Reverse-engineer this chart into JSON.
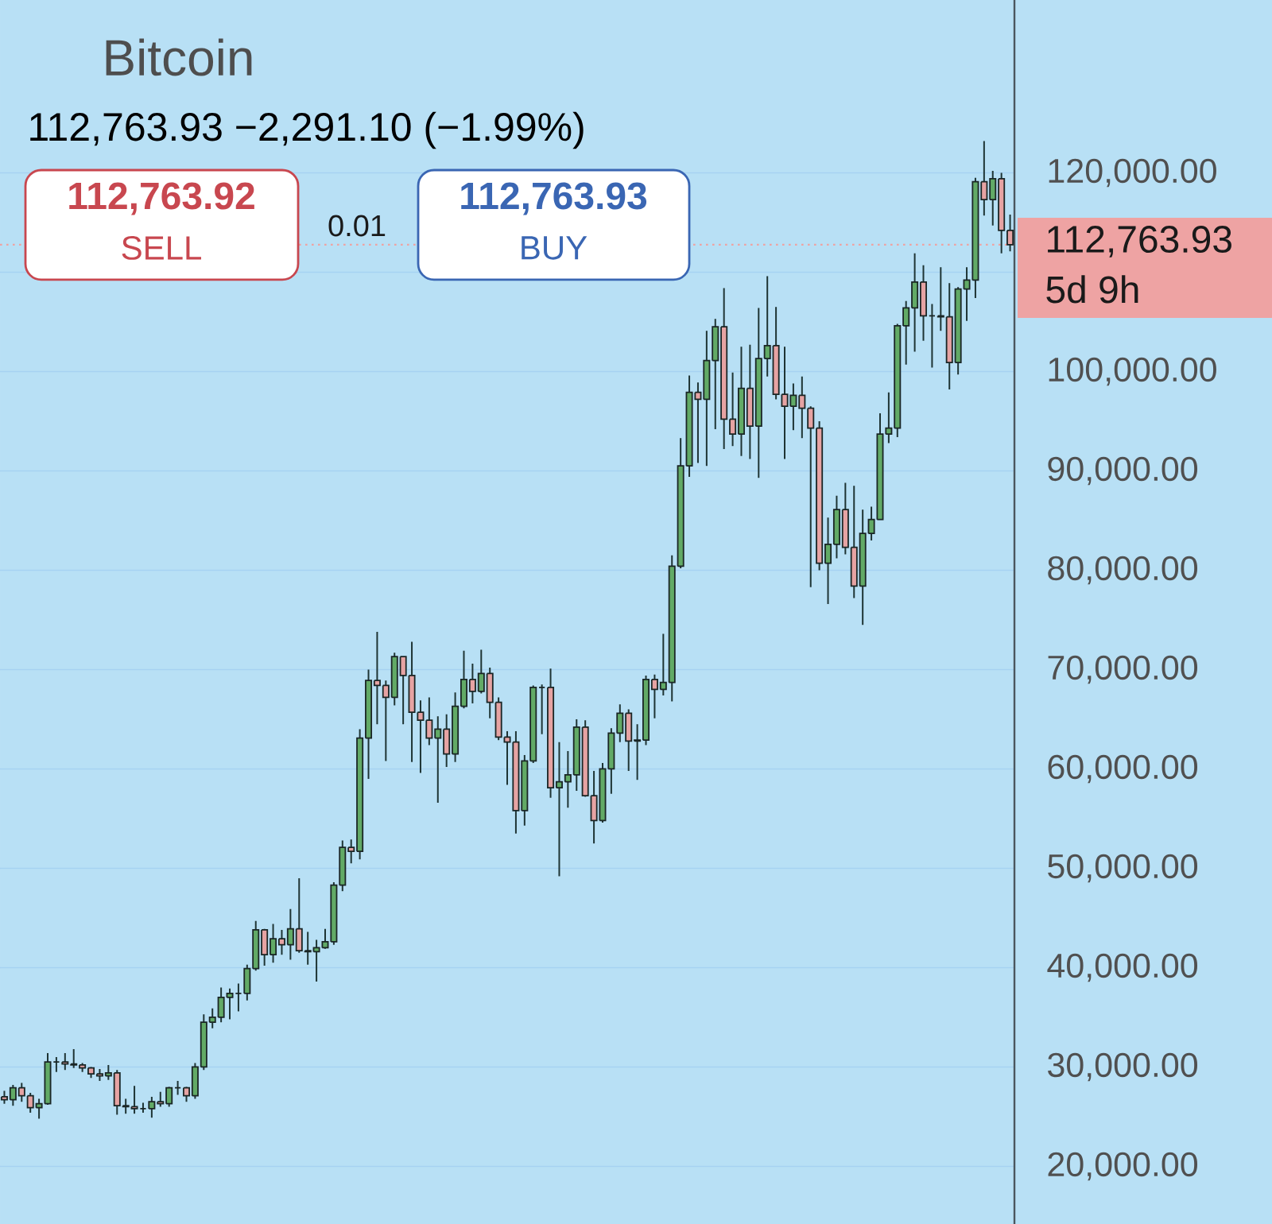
{
  "chart_data": {
    "type": "candlestick",
    "title": "Bitcoin",
    "subtitle": "112,763.93  −2,291.10 (−1.99%)",
    "annotations": [
      "112,763.92",
      "SELL",
      "0.01",
      "112,763.93",
      "BUY",
      "5d 9h"
    ],
    "categories": [
      null,
      null,
      null,
      null,
      null,
      null,
      null,
      null,
      null,
      null,
      null,
      null,
      null,
      null,
      null,
      null,
      null,
      null,
      null,
      null,
      null,
      null,
      null,
      null,
      null,
      null,
      null,
      null,
      null,
      null,
      null,
      null,
      null,
      null,
      null,
      null,
      null,
      null,
      null,
      null,
      null,
      null,
      null,
      null,
      null,
      null,
      null,
      null,
      null,
      null,
      null,
      null,
      null,
      null,
      null,
      null,
      null,
      null,
      null,
      null,
      null,
      null,
      null,
      null,
      null,
      null,
      null,
      null,
      null,
      null,
      null,
      null,
      null,
      null,
      null,
      null,
      null,
      null,
      null,
      null,
      null,
      null,
      null,
      null,
      null,
      null,
      null,
      null,
      null,
      null,
      null,
      null,
      null,
      null,
      null,
      null,
      null,
      null,
      null,
      null,
      null,
      null,
      null,
      null,
      null,
      null,
      null,
      null,
      null,
      null,
      null,
      null,
      null,
      null,
      null,
      null,
      null
    ],
    "ohlc": [
      [
        27000,
        27600,
        26300,
        26700
      ],
      [
        26700,
        28200,
        26100,
        27900
      ],
      [
        27900,
        28400,
        26500,
        27100
      ],
      [
        27100,
        27400,
        25400,
        25900
      ],
      [
        25900,
        26800,
        24800,
        26300
      ],
      [
        26300,
        31400,
        26200,
        30500
      ],
      [
        30500,
        31000,
        29500,
        30500
      ],
      [
        30500,
        31400,
        29700,
        30300
      ],
      [
        30300,
        31800,
        29900,
        30200
      ],
      [
        30200,
        30400,
        29500,
        29900
      ],
      [
        29900,
        30000,
        28900,
        29300
      ],
      [
        29300,
        29800,
        28600,
        29100
      ],
      [
        29100,
        30200,
        28700,
        29400
      ],
      [
        29400,
        29700,
        25200,
        26100
      ],
      [
        26100,
        26800,
        25300,
        26000
      ],
      [
        26000,
        28100,
        25300,
        25800
      ],
      [
        25800,
        26400,
        25400,
        25800
      ],
      [
        25800,
        27000,
        24900,
        26500
      ],
      [
        26500,
        27500,
        26000,
        26300
      ],
      [
        26300,
        28000,
        26000,
        27900
      ],
      [
        27900,
        28600,
        27200,
        27900
      ],
      [
        27900,
        28000,
        26500,
        27100
      ],
      [
        27100,
        30400,
        26800,
        30000
      ],
      [
        30000,
        35300,
        29700,
        34500
      ],
      [
        34500,
        35900,
        33900,
        35000
      ],
      [
        35000,
        38000,
        34500,
        37000
      ],
      [
        37000,
        37900,
        34800,
        37400
      ],
      [
        37400,
        38400,
        35600,
        37400
      ],
      [
        37400,
        40300,
        36700,
        39900
      ],
      [
        39900,
        44700,
        39700,
        43800
      ],
      [
        43800,
        43900,
        40200,
        41300
      ],
      [
        41300,
        44400,
        40500,
        42900
      ],
      [
        42900,
        43800,
        41300,
        42300
      ],
      [
        42300,
        45900,
        40800,
        43900
      ],
      [
        43900,
        49000,
        41500,
        41700
      ],
      [
        41700,
        43600,
        40300,
        41600
      ],
      [
        41600,
        42800,
        38600,
        42000
      ],
      [
        42000,
        43900,
        41900,
        42600
      ],
      [
        42600,
        48600,
        42300,
        48300
      ],
      [
        48300,
        52800,
        47700,
        52100
      ],
      [
        52100,
        52900,
        50500,
        51700
      ],
      [
        51700,
        64000,
        50900,
        63100
      ],
      [
        63100,
        70000,
        59000,
        68900
      ],
      [
        68900,
        73800,
        64500,
        68400
      ],
      [
        68400,
        68900,
        60800,
        67200
      ],
      [
        67200,
        71700,
        66400,
        71300
      ],
      [
        71300,
        71300,
        64500,
        69400
      ],
      [
        69400,
        72800,
        60700,
        65700
      ],
      [
        65700,
        66900,
        59600,
        64900
      ],
      [
        64900,
        67200,
        62400,
        63100
      ],
      [
        63100,
        65300,
        56600,
        64000
      ],
      [
        64000,
        65500,
        60200,
        61500
      ],
      [
        61500,
        67700,
        60700,
        66300
      ],
      [
        66300,
        71900,
        66100,
        69000
      ],
      [
        69000,
        70600,
        66600,
        67800
      ],
      [
        67800,
        72000,
        67600,
        69600
      ],
      [
        69600,
        70200,
        65100,
        66700
      ],
      [
        66700,
        67200,
        62900,
        63200
      ],
      [
        63200,
        63800,
        58400,
        62700
      ],
      [
        62700,
        63800,
        53500,
        55800
      ],
      [
        55800,
        61400,
        54300,
        60800
      ],
      [
        60800,
        68400,
        60600,
        68200
      ],
      [
        68200,
        68500,
        63500,
        68200
      ],
      [
        68200,
        70100,
        57100,
        58100
      ],
      [
        58100,
        62700,
        49200,
        58700
      ],
      [
        58700,
        61800,
        56100,
        59400
      ],
      [
        59400,
        65000,
        57800,
        64200
      ],
      [
        64200,
        64900,
        57200,
        57300
      ],
      [
        57300,
        59800,
        52500,
        54800
      ],
      [
        54800,
        60600,
        54600,
        60000
      ],
      [
        60000,
        64100,
        57500,
        63600
      ],
      [
        63600,
        66500,
        62700,
        65600
      ],
      [
        65600,
        66000,
        59800,
        62800
      ],
      [
        62800,
        64500,
        58900,
        62900
      ],
      [
        62900,
        69400,
        62400,
        69000
      ],
      [
        69000,
        69500,
        65100,
        68000
      ],
      [
        68000,
        73600,
        67400,
        68700
      ],
      [
        68700,
        81500,
        66800,
        80400
      ],
      [
        80400,
        93300,
        80200,
        90500
      ],
      [
        90500,
        99600,
        89400,
        97900
      ],
      [
        97900,
        98900,
        90800,
        97200
      ],
      [
        97200,
        104100,
        90500,
        101100
      ],
      [
        101100,
        105300,
        94200,
        104500
      ],
      [
        104500,
        108400,
        92200,
        95200
      ],
      [
        95200,
        99900,
        92500,
        93700
      ],
      [
        93700,
        102500,
        91500,
        98300
      ],
      [
        98300,
        102700,
        91200,
        94500
      ],
      [
        94500,
        106400,
        89300,
        101300
      ],
      [
        101300,
        109600,
        99500,
        102600
      ],
      [
        102600,
        106500,
        97200,
        97700
      ],
      [
        97700,
        102500,
        91200,
        96500
      ],
      [
        96500,
        98800,
        94100,
        97600
      ],
      [
        97600,
        99500,
        93300,
        96300
      ],
      [
        96300,
        96500,
        78300,
        94300
      ],
      [
        94300,
        95000,
        80000,
        80700
      ],
      [
        80700,
        85300,
        76600,
        82600
      ],
      [
        82600,
        87500,
        81200,
        86100
      ],
      [
        86100,
        88800,
        81600,
        82300
      ],
      [
        82300,
        88500,
        77200,
        78400
      ],
      [
        78400,
        86100,
        74500,
        83700
      ],
      [
        83700,
        86400,
        83000,
        85100
      ],
      [
        85100,
        95800,
        85100,
        93700
      ],
      [
        93700,
        97900,
        92800,
        94300
      ],
      [
        94300,
        104800,
        93400,
        104600
      ],
      [
        104600,
        107100,
        100700,
        106400
      ],
      [
        106400,
        111900,
        102000,
        109000
      ],
      [
        109000,
        110700,
        103100,
        105600
      ],
      [
        105600,
        106800,
        100400,
        105600
      ],
      [
        105600,
        110500,
        104100,
        105500
      ],
      [
        105500,
        108900,
        98200,
        100900
      ],
      [
        100900,
        108500,
        99700,
        108300
      ],
      [
        108300,
        110500,
        105100,
        109200
      ],
      [
        109200,
        119500,
        107400,
        119100
      ],
      [
        119100,
        123200,
        115700,
        117300
      ],
      [
        117300,
        120200,
        114700,
        119400
      ],
      [
        119400,
        120000,
        111900,
        114200
      ],
      [
        114200,
        115800,
        112100,
        112763.93
      ]
    ],
    "colors": [
      "#e6a3a3",
      "#62aa66",
      "#e6a3a3",
      "#e6a3a3",
      "#62aa66",
      "#62aa66",
      "#1a2626",
      "#e6a3a3",
      "#e6a3a3",
      "#e6a3a3",
      "#e6a3a3",
      "#e6a3a3",
      "#62aa66",
      "#e6a3a3",
      "#e6a3a3",
      "#e6a3a3",
      "#1a2626",
      "#62aa66",
      "#e6a3a3",
      "#62aa66",
      "#1a2626",
      "#e6a3a3",
      "#62aa66",
      "#62aa66",
      "#62aa66",
      "#62aa66",
      "#62aa66",
      "#1a2626",
      "#62aa66",
      "#62aa66",
      "#e6a3a3",
      "#62aa66",
      "#e6a3a3",
      "#62aa66",
      "#e6a3a3",
      "#e6a3a3",
      "#62aa66",
      "#62aa66",
      "#62aa66",
      "#62aa66",
      "#e6a3a3",
      "#62aa66",
      "#62aa66",
      "#e6a3a3",
      "#e6a3a3",
      "#62aa66",
      "#e6a3a3",
      "#e6a3a3",
      "#e6a3a3",
      "#e6a3a3",
      "#62aa66",
      "#e6a3a3",
      "#62aa66",
      "#62aa66",
      "#e6a3a3",
      "#62aa66",
      "#e6a3a3",
      "#e6a3a3",
      "#e6a3a3",
      "#e6a3a3",
      "#62aa66",
      "#62aa66",
      "#1a2626",
      "#e6a3a3",
      "#62aa66",
      "#62aa66",
      "#62aa66",
      "#e6a3a3",
      "#e6a3a3",
      "#62aa66",
      "#62aa66",
      "#62aa66",
      "#e6a3a3",
      "#62aa66",
      "#62aa66",
      "#e6a3a3",
      "#62aa66",
      "#62aa66",
      "#62aa66",
      "#62aa66",
      "#e6a3a3",
      "#62aa66",
      "#62aa66",
      "#e6a3a3",
      "#e6a3a3",
      "#62aa66",
      "#e6a3a3",
      "#62aa66",
      "#62aa66",
      "#e6a3a3",
      "#e6a3a3",
      "#62aa66",
      "#e6a3a3",
      "#e6a3a3",
      "#e6a3a3",
      "#62aa66",
      "#62aa66",
      "#e6a3a3",
      "#e6a3a3",
      "#62aa66",
      "#62aa66",
      "#62aa66",
      "#62aa66",
      "#62aa66",
      "#62aa66",
      "#62aa66",
      "#e6a3a3",
      "#1a2626",
      "#e6a3a3",
      "#e6a3a3",
      "#62aa66",
      "#62aa66",
      "#62aa66",
      "#e6a3a3",
      "#62aa66",
      "#e6a3a3",
      "#e6a3a3"
    ],
    "ylim": [
      14200,
      137400
    ],
    "yticks": [
      {
        "value": 20000,
        "label": "20,000.00"
      },
      {
        "value": 30000,
        "label": "30,000.00"
      },
      {
        "value": 40000,
        "label": "40,000.00"
      },
      {
        "value": 50000,
        "label": "50,000.00"
      },
      {
        "value": 60000,
        "label": "60,000.00"
      },
      {
        "value": 70000,
        "label": "70,000.00"
      },
      {
        "value": 80000,
        "label": "80,000.00"
      },
      {
        "value": 90000,
        "label": "90,000.00"
      },
      {
        "value": 100000,
        "label": "100,000.00"
      },
      {
        "value": 110000,
        "label": null
      },
      {
        "value": 120000,
        "label": "120,000.00"
      }
    ],
    "grid": "y",
    "tick_labels": "y",
    "ref_lines": [
      {
        "axis": "y",
        "value": 112763.93,
        "label": "112,763.93",
        "color": "#eea3a3",
        "line_style": "dotted"
      }
    ]
  }
}
